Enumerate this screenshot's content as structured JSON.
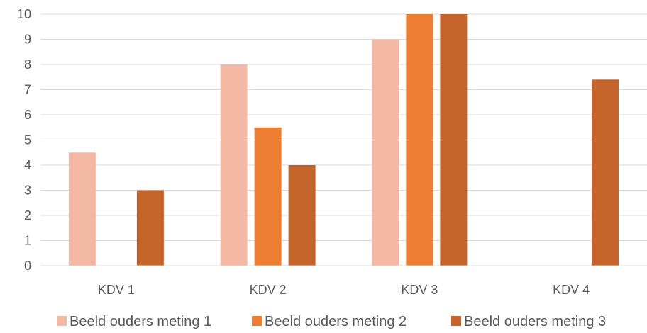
{
  "chart_data": {
    "type": "bar",
    "categories": [
      "KDV 1",
      "KDV 2",
      "KDV 3",
      "KDV 4"
    ],
    "series": [
      {
        "name": "Beeld ouders meting 1",
        "color": "#F4B9A5",
        "values": [
          4.5,
          8,
          9,
          null
        ]
      },
      {
        "name": "Beeld ouders meting 2",
        "color": "#ED7D31",
        "values": [
          null,
          5.5,
          10,
          null
        ]
      },
      {
        "name": "Beeld ouders meting 3",
        "color": "#C4632A",
        "values": [
          3,
          4,
          10,
          7.4
        ]
      }
    ],
    "ylim": [
      0,
      10
    ],
    "yticks": [
      "0",
      "1",
      "2",
      "3",
      "4",
      "5",
      "6",
      "7",
      "8",
      "9",
      "10"
    ],
    "grid": true,
    "legend_position": "bottom"
  }
}
